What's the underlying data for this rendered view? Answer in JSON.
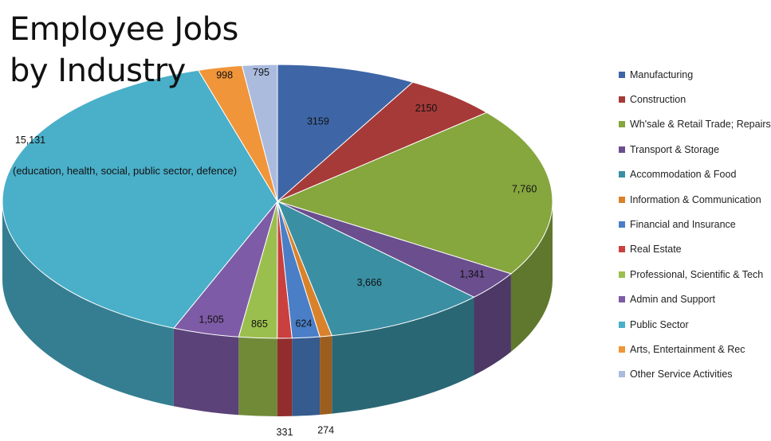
{
  "chart_data": {
    "type": "pie",
    "title_lines": [
      "Employee Jobs",
      "by Industry"
    ],
    "slices": [
      {
        "name": "Manufacturing",
        "value": 3159,
        "label": "3159",
        "color": "#3E66A6"
      },
      {
        "name": "Construction",
        "value": 2150,
        "label": "2150",
        "color": "#A63A38"
      },
      {
        "name": "Wh'sale & Retail Trade; Repairs",
        "value": 7760,
        "label": "7,760",
        "color": "#86A63E"
      },
      {
        "name": "Transport & Storage",
        "value": 1341,
        "label": "1,341",
        "color": "#6B4E8E"
      },
      {
        "name": "Accommodation & Food",
        "value": 3666,
        "label": "3,666",
        "color": "#3A8FA3"
      },
      {
        "name": "Information & Communication",
        "value": 274,
        "label": "274",
        "color": "#D9822B"
      },
      {
        "name": "Financial and Insurance",
        "value": 624,
        "label": "624",
        "color": "#4A7EC7"
      },
      {
        "name": "Real Estate",
        "value": 331,
        "label": "331",
        "color": "#C9403E"
      },
      {
        "name": "Professional, Scientific & Tech",
        "value": 865,
        "label": "865",
        "color": "#9BBF4E"
      },
      {
        "name": "Admin and Support",
        "value": 1505,
        "label": "1,505",
        "color": "#7E5BA6"
      },
      {
        "name": "Public Sector",
        "value": 15131,
        "label": "15,131",
        "note": "(education, health, social, public sector, defence)",
        "color": "#4AAFC9"
      },
      {
        "name": "Arts, Entertainment & Rec",
        "value": 998,
        "label": "998",
        "color": "#F0953A"
      },
      {
        "name": "Other Service Activities",
        "value": 795,
        "label": "795",
        "color": "#AABBDE"
      }
    ],
    "legend": {
      "position": "right"
    }
  }
}
